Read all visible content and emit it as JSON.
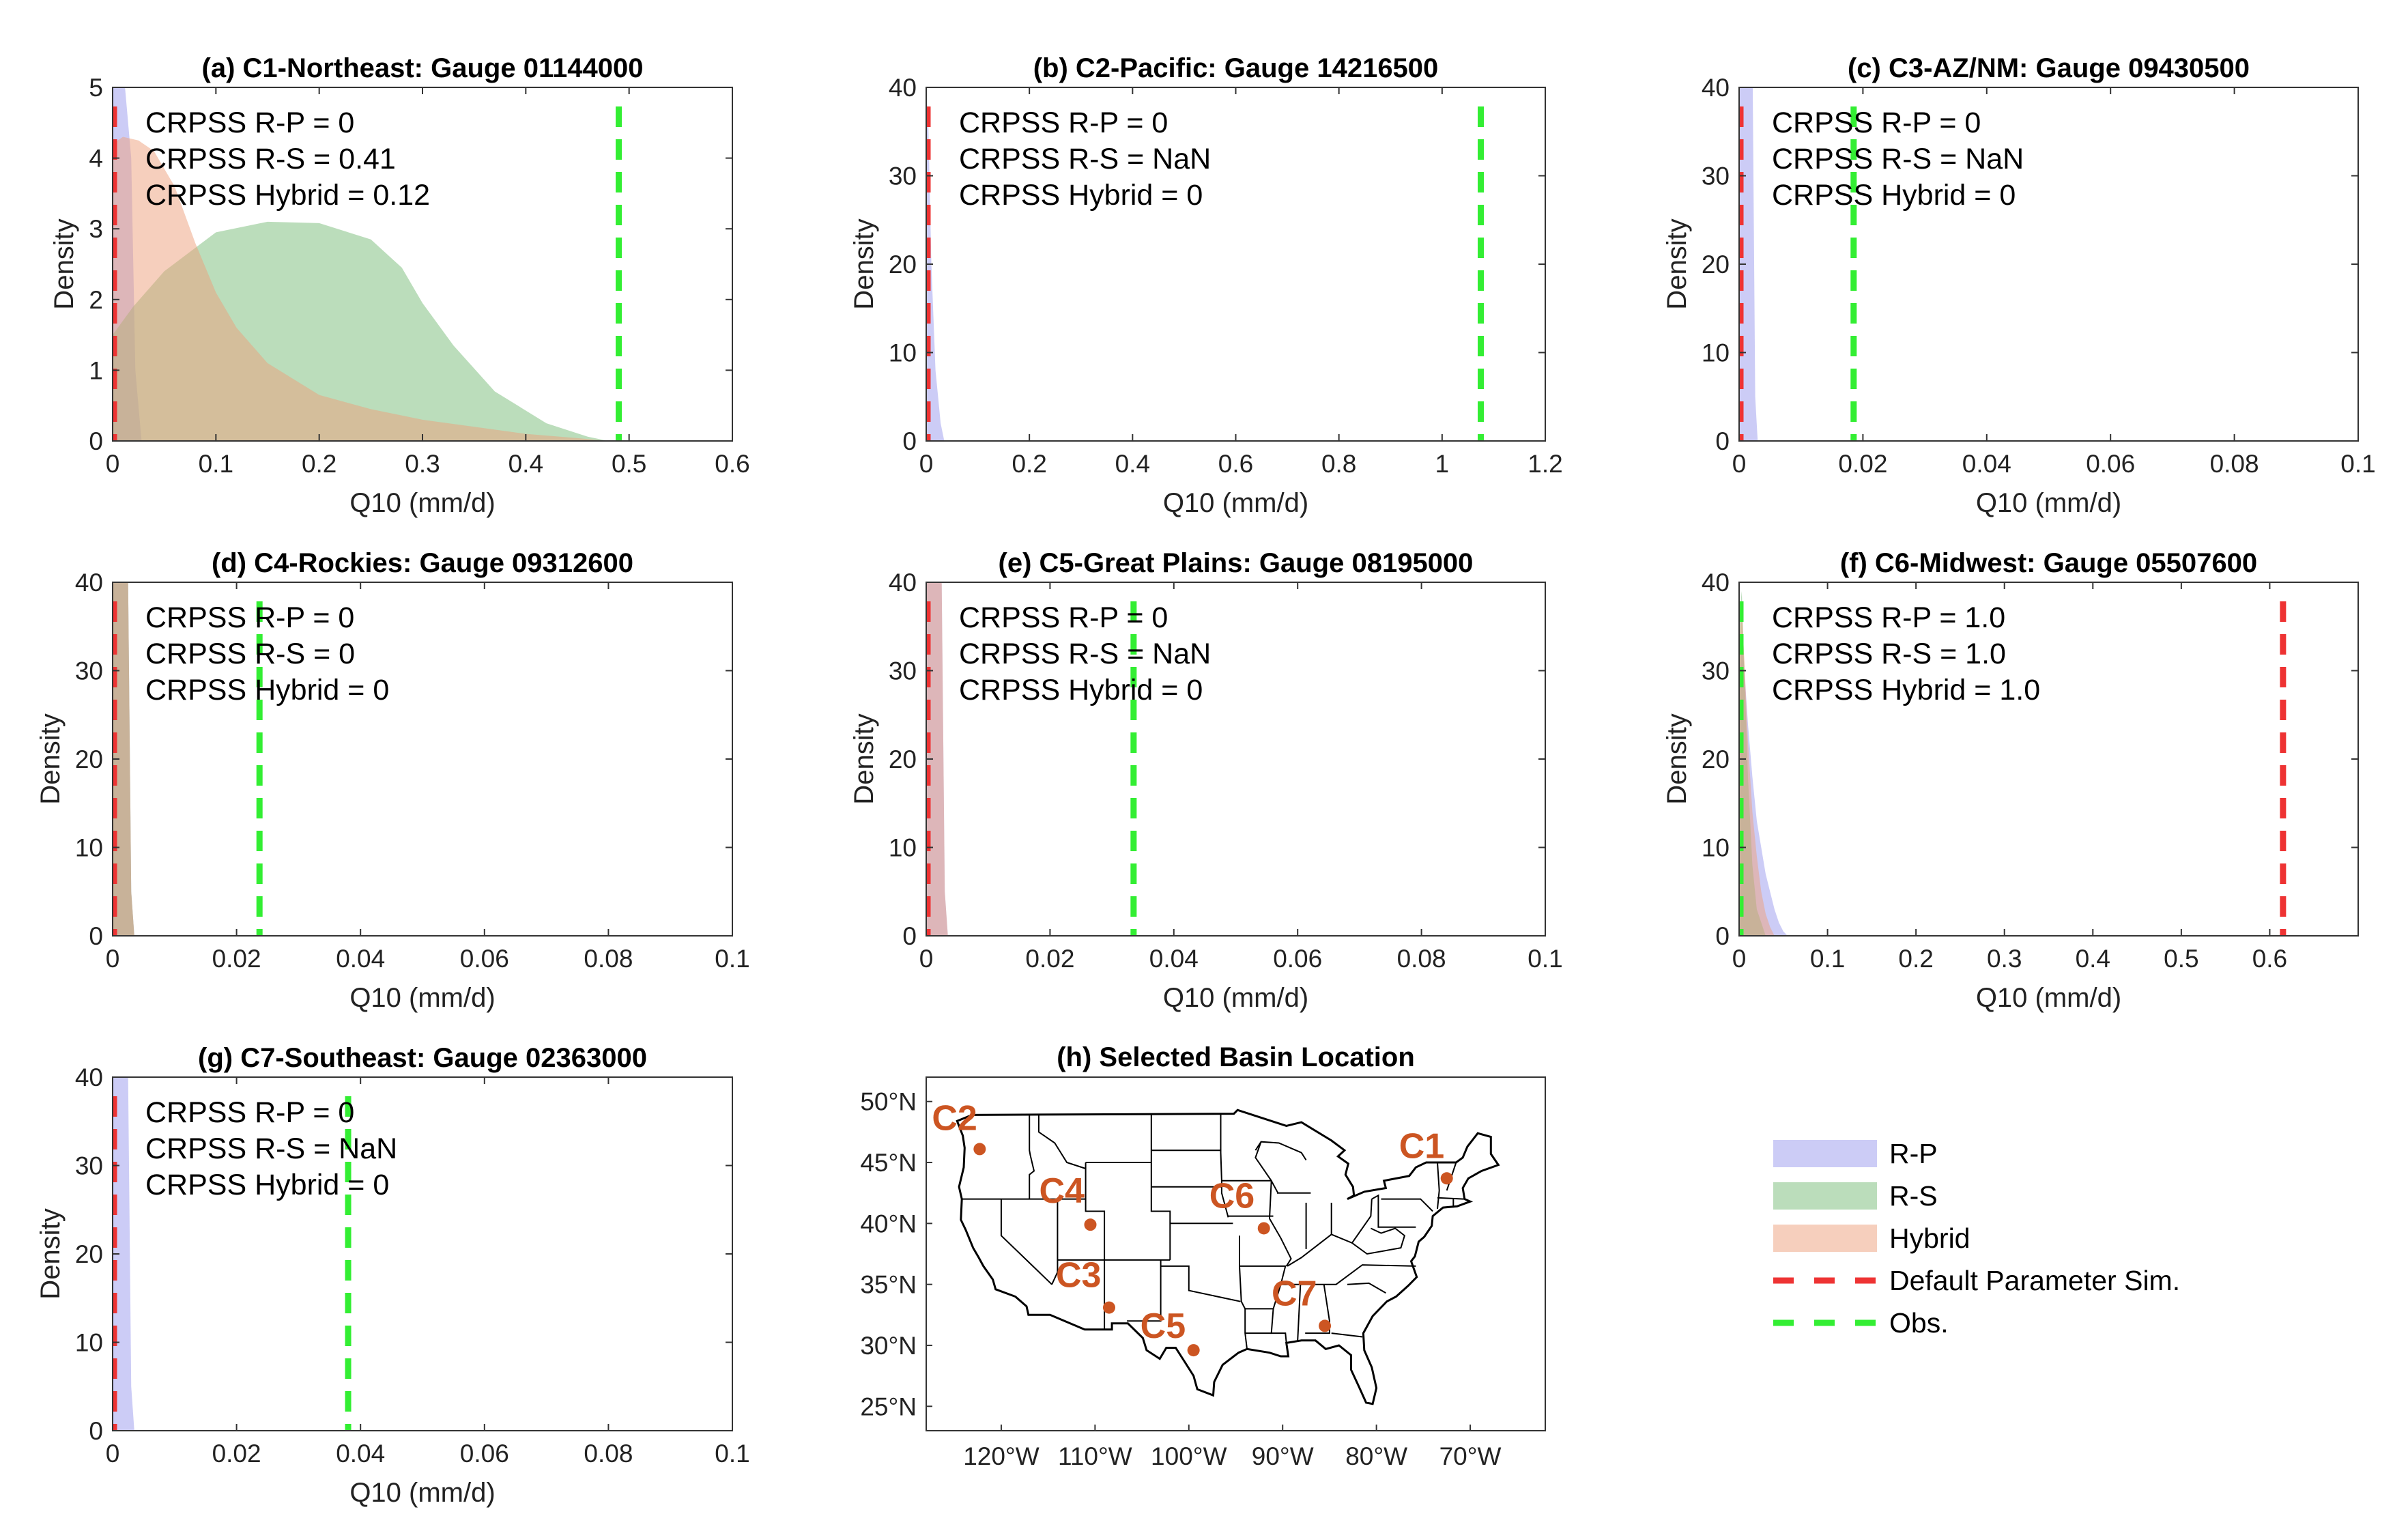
{
  "colors": {
    "rp": "#9999ee",
    "rs": "#77bb77",
    "hybrid": "#eea07c",
    "default": "#ee3333",
    "obs": "#33ee33",
    "marker": "#cc5522"
  },
  "chart_data": [
    {
      "type": "area",
      "title": "(a) C1-Northeast: Gauge 01144000",
      "xlabel": "Q10 (mm/d)",
      "ylabel": "Density",
      "xlim": [
        0,
        0.6
      ],
      "ylim": [
        0,
        5
      ],
      "xticks": [
        0,
        0.1,
        0.2,
        0.3,
        0.4,
        0.5,
        0.6
      ],
      "xtick_labels": [
        "0",
        "0.1",
        "0.2",
        "0.3",
        "0.4",
        "0.5",
        "0.6"
      ],
      "yticks": [
        0,
        1,
        2,
        3,
        4,
        5
      ],
      "ytick_labels": [
        "0",
        "1",
        "2",
        "3",
        "4",
        "5"
      ],
      "annotations": [
        "CRPSS R-P = 0",
        "CRPSS R-S = 0.41",
        "CRPSS Hybrid = 0.12"
      ],
      "default_sim": 0.0,
      "obs": 0.49,
      "series": [
        {
          "key": "rp",
          "x": [
            0,
            0.005,
            0.012,
            0.018,
            0.022,
            0.028
          ],
          "y": [
            5.0,
            5.0,
            5.0,
            4.0,
            1.0,
            0
          ]
        },
        {
          "key": "rs",
          "x": [
            0,
            0.02,
            0.05,
            0.1,
            0.15,
            0.2,
            0.25,
            0.28,
            0.3,
            0.33,
            0.37,
            0.42,
            0.46,
            0.48
          ],
          "y": [
            1.5,
            1.9,
            2.4,
            2.95,
            3.1,
            3.08,
            2.85,
            2.45,
            1.95,
            1.35,
            0.7,
            0.25,
            0.06,
            0
          ]
        },
        {
          "key": "hybrid",
          "x": [
            0,
            0.01,
            0.025,
            0.04,
            0.06,
            0.08,
            0.1,
            0.12,
            0.15,
            0.2,
            0.25,
            0.3,
            0.35,
            0.4,
            0.45,
            0.48
          ],
          "y": [
            4.2,
            4.3,
            4.25,
            4.1,
            3.6,
            2.8,
            2.1,
            1.6,
            1.1,
            0.65,
            0.45,
            0.3,
            0.2,
            0.1,
            0.04,
            0
          ]
        }
      ]
    },
    {
      "type": "area",
      "title": "(b) C2-Pacific: Gauge 14216500",
      "xlabel": "Q10 (mm/d)",
      "ylabel": "Density",
      "xlim": [
        0,
        1.2
      ],
      "ylim": [
        0,
        40
      ],
      "xticks": [
        0,
        0.2,
        0.4,
        0.6,
        0.8,
        1.0,
        1.2
      ],
      "xtick_labels": [
        "0",
        "0.2",
        "0.4",
        "0.6",
        "0.8",
        "1",
        "1.2"
      ],
      "yticks": [
        0,
        10,
        20,
        30,
        40
      ],
      "ytick_labels": [
        "0",
        "10",
        "20",
        "30",
        "40"
      ],
      "annotations": [
        "CRPSS R-P = 0",
        "CRPSS R-S = NaN",
        "CRPSS Hybrid = 0"
      ],
      "default_sim": 0.0,
      "obs": 1.075,
      "series": [
        {
          "key": "rp",
          "x": [
            0,
            0.004,
            0.01,
            0.018,
            0.028,
            0.035
          ],
          "y": [
            40,
            36,
            20,
            8,
            2,
            0
          ]
        }
      ]
    },
    {
      "type": "area",
      "title": "(c) C3-AZ/NM: Gauge 09430500",
      "xlabel": "Q10 (mm/d)",
      "ylabel": "Density",
      "xlim": [
        0,
        0.1
      ],
      "ylim": [
        0,
        40
      ],
      "xticks": [
        0,
        0.02,
        0.04,
        0.06,
        0.08,
        0.1
      ],
      "xtick_labels": [
        "0",
        "0.02",
        "0.04",
        "0.06",
        "0.08",
        "0.1"
      ],
      "yticks": [
        0,
        10,
        20,
        30,
        40
      ],
      "ytick_labels": [
        "0",
        "10",
        "20",
        "30",
        "40"
      ],
      "annotations": [
        "CRPSS R-P = 0",
        "CRPSS R-S = NaN",
        "CRPSS Hybrid = 0"
      ],
      "default_sim": 0.0,
      "obs": 0.0185,
      "series": [
        {
          "key": "rp",
          "x": [
            0,
            0.0022,
            0.0026,
            0.003
          ],
          "y": [
            40,
            40,
            5,
            0
          ]
        }
      ]
    },
    {
      "type": "area",
      "title": "(d) C4-Rockies: Gauge 09312600",
      "xlabel": "Q10 (mm/d)",
      "ylabel": "Density",
      "xlim": [
        0,
        0.1
      ],
      "ylim": [
        0,
        40
      ],
      "xticks": [
        0,
        0.02,
        0.04,
        0.06,
        0.08,
        0.1
      ],
      "xtick_labels": [
        "0",
        "0.02",
        "0.04",
        "0.06",
        "0.08",
        "0.1"
      ],
      "yticks": [
        0,
        10,
        20,
        30,
        40
      ],
      "ytick_labels": [
        "0",
        "10",
        "20",
        "30",
        "40"
      ],
      "annotations": [
        "CRPSS R-P = 0",
        "CRPSS R-S = 0",
        "CRPSS Hybrid = 0"
      ],
      "default_sim": 0.0,
      "obs": 0.0237,
      "series": [
        {
          "key": "rp",
          "x": [
            0,
            0.0025,
            0.003,
            0.0035
          ],
          "y": [
            40,
            40,
            5,
            0
          ]
        },
        {
          "key": "rs",
          "x": [
            0,
            0.0025,
            0.003,
            0.0035
          ],
          "y": [
            40,
            40,
            5,
            0
          ]
        },
        {
          "key": "hybrid",
          "x": [
            0,
            0.0025,
            0.003,
            0.0035
          ],
          "y": [
            40,
            40,
            5,
            0
          ]
        }
      ]
    },
    {
      "type": "area",
      "title": "(e) C5-Great Plains: Gauge 08195000",
      "xlabel": "Q10 (mm/d)",
      "ylabel": "Density",
      "xlim": [
        0,
        0.1
      ],
      "ylim": [
        0,
        40
      ],
      "xticks": [
        0,
        0.02,
        0.04,
        0.06,
        0.08,
        0.1
      ],
      "xtick_labels": [
        "0",
        "0.02",
        "0.04",
        "0.06",
        "0.08",
        "0.1"
      ],
      "yticks": [
        0,
        10,
        20,
        30,
        40
      ],
      "ytick_labels": [
        "0",
        "10",
        "20",
        "30",
        "40"
      ],
      "annotations": [
        "CRPSS R-P = 0",
        "CRPSS R-S = NaN",
        "CRPSS Hybrid = 0"
      ],
      "default_sim": 0.0,
      "obs": 0.0335,
      "series": [
        {
          "key": "rp",
          "x": [
            0,
            0.0025,
            0.003,
            0.0035
          ],
          "y": [
            40,
            40,
            5,
            0
          ]
        },
        {
          "key": "hybrid",
          "x": [
            0,
            0.0025,
            0.003,
            0.0035
          ],
          "y": [
            40,
            40,
            5,
            0
          ]
        }
      ]
    },
    {
      "type": "area",
      "title": "(f) C6-Midwest: Gauge 05507600",
      "xlabel": "Q10 (mm/d)",
      "ylabel": "Density",
      "xlim": [
        0,
        0.7
      ],
      "ylim": [
        0,
        40
      ],
      "xticks": [
        0,
        0.1,
        0.2,
        0.3,
        0.4,
        0.5,
        0.6
      ],
      "xtick_labels": [
        "0",
        "0.1",
        "0.2",
        "0.3",
        "0.4",
        "0.5",
        "0.6"
      ],
      "yticks": [
        0,
        10,
        20,
        30,
        40
      ],
      "ytick_labels": [
        "0",
        "10",
        "20",
        "30",
        "40"
      ],
      "annotations": [
        "CRPSS R-P = 1.0",
        "CRPSS R-S = 1.0",
        "CRPSS Hybrid = 1.0"
      ],
      "default_sim": 0.615,
      "obs": 0.0,
      "series": [
        {
          "key": "rp",
          "x": [
            0,
            0.003,
            0.006,
            0.01,
            0.015,
            0.02,
            0.025,
            0.03,
            0.035,
            0.04,
            0.045,
            0.05,
            0.055
          ],
          "y": [
            28,
            34,
            30,
            24,
            18,
            13,
            10,
            7,
            5,
            3,
            1.5,
            0.5,
            0
          ]
        },
        {
          "key": "rs",
          "x": [
            0,
            0.003,
            0.006,
            0.01,
            0.015,
            0.02,
            0.03
          ],
          "y": [
            36,
            39,
            30,
            18,
            8,
            3,
            0
          ]
        },
        {
          "key": "hybrid",
          "x": [
            0,
            0.003,
            0.006,
            0.01,
            0.015,
            0.02,
            0.025,
            0.03,
            0.035,
            0.04
          ],
          "y": [
            33,
            37,
            31,
            22,
            14,
            9,
            5,
            2.5,
            1,
            0
          ]
        }
      ]
    },
    {
      "type": "area",
      "title": "(g) C7-Southeast: Gauge 02363000",
      "xlabel": "Q10 (mm/d)",
      "ylabel": "Density",
      "xlim": [
        0,
        0.1
      ],
      "ylim": [
        0,
        40
      ],
      "xticks": [
        0,
        0.02,
        0.04,
        0.06,
        0.08,
        0.1
      ],
      "xtick_labels": [
        "0",
        "0.02",
        "0.04",
        "0.06",
        "0.08",
        "0.1"
      ],
      "yticks": [
        0,
        10,
        20,
        30,
        40
      ],
      "ytick_labels": [
        "0",
        "10",
        "20",
        "30",
        "40"
      ],
      "annotations": [
        "CRPSS R-P = 0",
        "CRPSS R-S = NaN",
        "CRPSS Hybrid = 0"
      ],
      "default_sim": 0.0,
      "obs": 0.038,
      "series": [
        {
          "key": "rp",
          "x": [
            0,
            0.0025,
            0.003,
            0.0035
          ],
          "y": [
            40,
            40,
            5,
            0
          ]
        }
      ]
    }
  ],
  "map": {
    "title": "(h) Selected Basin Location",
    "lon_range": [
      -128,
      -62
    ],
    "lat_range": [
      23,
      52
    ],
    "lon_ticks": [
      -120,
      -110,
      -100,
      -90,
      -80,
      -70
    ],
    "lon_tick_labels": [
      "120°W",
      "110°W",
      "100°W",
      "90°W",
      "80°W",
      "70°W"
    ],
    "lat_ticks": [
      25,
      30,
      35,
      40,
      45,
      50
    ],
    "lat_tick_labels": [
      "25°N",
      "30°N",
      "35°N",
      "40°N",
      "45°N",
      "50°N"
    ],
    "basins": [
      {
        "label": "C1",
        "lon": -72.5,
        "lat": 43.7
      },
      {
        "label": "C2",
        "lon": -122.3,
        "lat": 46.1
      },
      {
        "label": "C3",
        "lon": -108.5,
        "lat": 33.1
      },
      {
        "label": "C4",
        "lon": -110.5,
        "lat": 39.9
      },
      {
        "label": "C5",
        "lon": -99.5,
        "lat": 29.6
      },
      {
        "label": "C6",
        "lon": -92.0,
        "lat": 39.6
      },
      {
        "label": "C7",
        "lon": -85.5,
        "lat": 31.6
      }
    ]
  },
  "legend": [
    {
      "key": "rp",
      "label": "R-P",
      "style": "patch"
    },
    {
      "key": "rs",
      "label": "R-S",
      "style": "patch"
    },
    {
      "key": "hybrid",
      "label": "Hybrid",
      "style": "patch"
    },
    {
      "key": "default",
      "label": "Default Parameter Sim.",
      "style": "dash"
    },
    {
      "key": "obs",
      "label": "Obs.",
      "style": "dash"
    }
  ]
}
